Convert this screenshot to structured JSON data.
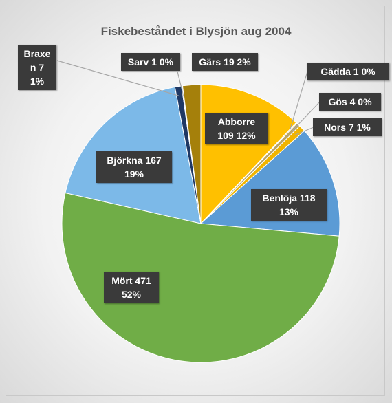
{
  "chart_data": {
    "type": "pie",
    "title": "Fiskebeståndet i Blysjön aug 2004",
    "categories": [
      "Abborre",
      "Gädda",
      "Gös",
      "Nors",
      "Benlöja",
      "Mört",
      "Björkna",
      "Braxen",
      "Sarv",
      "Gärs"
    ],
    "values": [
      109,
      1,
      4,
      7,
      118,
      471,
      167,
      7,
      1,
      19
    ],
    "value_labels": [
      "Abborre 109 12%",
      "Gädda 1 0%",
      "Gös 4 0%",
      "Nors 7 1%",
      "Benlöja 118 13%",
      "Mört 471 52%",
      "Björkna 167 19%",
      "Braxen 7 1%",
      "Sarv 1 0%",
      "Gärs 19 2%"
    ],
    "colors": [
      "#ffc000",
      "#d9c38a",
      "#b8a468",
      "#f0b400",
      "#5b9bd5",
      "#70ad47",
      "#7cb9e8",
      "#1f3864",
      "#9dc3e6",
      "#a5800b"
    ]
  }
}
